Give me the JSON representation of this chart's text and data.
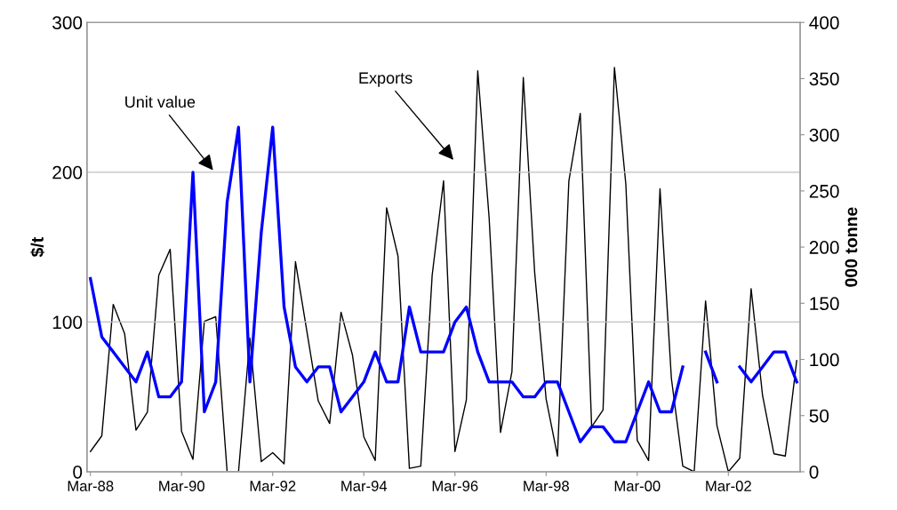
{
  "chart_data": {
    "type": "line",
    "categories": [
      "Mar-88",
      null,
      null,
      null,
      null,
      null,
      null,
      null,
      "Mar-90",
      null,
      null,
      null,
      null,
      null,
      null,
      null,
      "Mar-92",
      null,
      null,
      null,
      null,
      null,
      null,
      null,
      "Mar-94",
      null,
      null,
      null,
      null,
      null,
      null,
      null,
      "Mar-96",
      null,
      null,
      null,
      null,
      null,
      null,
      null,
      "Mar-98",
      null,
      null,
      null,
      null,
      null,
      null,
      null,
      "Mar-00",
      null,
      null,
      null,
      null,
      null,
      null,
      null,
      "Mar-02",
      null,
      null,
      null,
      null,
      null,
      null
    ],
    "series": [
      {
        "color": "#0000ff",
        "values": [
          129,
          90,
          80,
          70,
          60,
          80,
          50,
          50,
          60,
          200,
          40,
          60,
          180,
          230,
          60,
          160,
          230,
          110,
          70,
          60,
          70,
          70,
          40,
          50,
          60,
          80,
          60,
          60,
          110,
          80,
          80,
          80,
          100,
          110,
          80,
          60,
          60,
          60,
          50,
          50,
          60,
          60,
          40,
          20,
          30,
          30,
          20,
          20,
          40,
          60,
          40,
          40,
          70,
          null,
          80,
          60,
          null,
          70,
          60,
          70,
          80,
          80,
          60
        ]
      },
      {
        "color": "#000000",
        "axis": "y2",
        "values": [
          18,
          32,
          149,
          123,
          37,
          53,
          175,
          198,
          36,
          11,
          134,
          138,
          0,
          0,
          119,
          9,
          17,
          7,
          187,
          125,
          63,
          43,
          142,
          104,
          31,
          10,
          235,
          192,
          3,
          5,
          175,
          259,
          18,
          64,
          357,
          226,
          35,
          89,
          351,
          177,
          65,
          14,
          259,
          319,
          40,
          55,
          360,
          256,
          28,
          10,
          252,
          83,
          5,
          0,
          152,
          41,
          0,
          12,
          163,
          68,
          16,
          14,
          99
        ]
      }
    ],
    "annotations": [
      "Unit value",
      "Exports"
    ],
    "ylabel": "$/t",
    "y2label": "000 tonne",
    "ylim": [
      0,
      300
    ],
    "yticks": [
      0,
      100,
      200,
      300
    ],
    "y2lim": [
      0,
      400
    ],
    "y2ticks": [
      0,
      50,
      100,
      150,
      200,
      250,
      300,
      350,
      400
    ],
    "grid": "y",
    "legend": false
  }
}
